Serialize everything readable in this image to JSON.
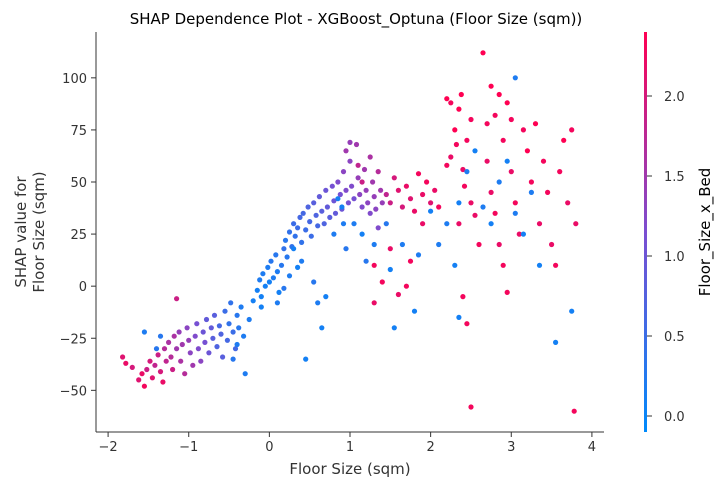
{
  "chart_data": {
    "type": "scatter",
    "title": "SHAP Dependence Plot - XGBoost_Optuna (Floor Size (sqm))",
    "xlabel": "Floor Size (sqm)",
    "ylabel_line1": "SHAP value for",
    "ylabel_line2": "Floor Size (sqm)",
    "xlim": [
      -2.15,
      4.15
    ],
    "ylim": [
      -70,
      122
    ],
    "xticks": [
      -2,
      -1,
      0,
      1,
      2,
      3,
      4
    ],
    "xtick_labels": [
      "−2",
      "−1",
      "0",
      "1",
      "2",
      "3",
      "4"
    ],
    "yticks": [
      -50,
      -25,
      0,
      25,
      50,
      75,
      100
    ],
    "ytick_labels": [
      "−50",
      "−25",
      "0",
      "25",
      "50",
      "75",
      "100"
    ],
    "grid": false,
    "colorbar": {
      "label": "Floor_Size_x_Bed",
      "range": [
        -0.1,
        2.4
      ],
      "ticks": [
        0.0,
        0.5,
        1.0,
        1.5,
        2.0
      ],
      "tick_labels": [
        "0.0",
        "0.5",
        "1.0",
        "1.5",
        "2.0"
      ],
      "color_low": "#008afb",
      "color_mid": "#7b4ed1",
      "color_high": "#ff0052"
    },
    "points": [
      [
        -1.82,
        -34,
        2.1
      ],
      [
        -1.78,
        -37,
        2.2
      ],
      [
        -1.7,
        -39,
        2.0
      ],
      [
        -1.62,
        -45,
        2.1
      ],
      [
        -1.58,
        -42,
        2.2
      ],
      [
        -1.55,
        -48,
        2.3
      ],
      [
        -1.52,
        -40,
        1.9
      ],
      [
        -1.48,
        -36,
        2.0
      ],
      [
        -1.45,
        -44,
        2.1
      ],
      [
        -1.42,
        -38,
        1.8
      ],
      [
        -1.38,
        -33,
        1.9
      ],
      [
        -1.35,
        -41,
        2.0
      ],
      [
        -1.32,
        -46,
        2.2
      ],
      [
        -1.3,
        -30,
        1.7
      ],
      [
        -1.28,
        -36,
        1.8
      ],
      [
        -1.25,
        -27,
        1.6
      ],
      [
        -1.22,
        -34,
        1.7
      ],
      [
        -1.2,
        -40,
        1.9
      ],
      [
        -1.18,
        -24,
        1.6
      ],
      [
        -1.15,
        -30,
        1.5
      ],
      [
        -1.12,
        -22,
        1.4
      ],
      [
        -1.1,
        -36,
        1.6
      ],
      [
        -1.08,
        -28,
        1.5
      ],
      [
        -1.05,
        -42,
        1.7
      ],
      [
        -1.02,
        -20,
        1.3
      ],
      [
        -1.0,
        -26,
        1.4
      ],
      [
        -0.98,
        -32,
        1.3
      ],
      [
        -0.95,
        -38,
        1.5
      ],
      [
        -0.92,
        -24,
        1.2
      ],
      [
        -0.9,
        -18,
        1.1
      ],
      [
        -0.88,
        -30,
        1.2
      ],
      [
        -0.85,
        -36,
        1.3
      ],
      [
        -0.82,
        -22,
        1.0
      ],
      [
        -0.8,
        -27,
        1.1
      ],
      [
        -0.78,
        -16,
        0.9
      ],
      [
        -0.75,
        -32,
        1.0
      ],
      [
        -0.72,
        -20,
        0.9
      ],
      [
        -0.7,
        -25,
        0.8
      ],
      [
        -0.68,
        -14,
        0.8
      ],
      [
        -0.65,
        -29,
        0.7
      ],
      [
        -0.62,
        -19,
        0.6
      ],
      [
        -0.6,
        -23,
        0.7
      ],
      [
        -0.58,
        -34,
        0.8
      ],
      [
        -0.55,
        -12,
        0.5
      ],
      [
        -0.52,
        -26,
        0.6
      ],
      [
        -0.5,
        -18,
        0.4
      ],
      [
        -0.48,
        -8,
        0.4
      ],
      [
        -0.45,
        -22,
        0.5
      ],
      [
        -0.42,
        -30,
        0.6
      ],
      [
        -0.4,
        -14,
        0.3
      ],
      [
        -0.38,
        -20,
        0.3
      ],
      [
        -0.35,
        -10,
        0.2
      ],
      [
        -0.32,
        -24,
        0.2
      ],
      [
        -0.3,
        -42,
        0.2
      ],
      [
        -1.55,
        -22,
        0.2
      ],
      [
        -1.4,
        -30,
        0.3
      ],
      [
        -1.15,
        -6,
        1.9
      ],
      [
        -1.35,
        -24,
        0.3
      ],
      [
        -0.2,
        -7,
        0.1
      ],
      [
        -0.15,
        -2,
        0.1
      ],
      [
        -0.12,
        3,
        0.2
      ],
      [
        -0.1,
        -5,
        0.1
      ],
      [
        -0.08,
        6,
        0.2
      ],
      [
        -0.05,
        0,
        0.1
      ],
      [
        -0.02,
        9,
        0.2
      ],
      [
        0.0,
        2,
        0.1
      ],
      [
        0.02,
        12,
        0.3
      ],
      [
        0.05,
        4,
        0.2
      ],
      [
        0.08,
        15,
        0.3
      ],
      [
        0.1,
        7,
        0.2
      ],
      [
        0.12,
        -3,
        0.1
      ],
      [
        0.15,
        10,
        0.3
      ],
      [
        0.18,
        18,
        0.4
      ],
      [
        0.2,
        22,
        0.3
      ],
      [
        0.22,
        14,
        0.3
      ],
      [
        0.25,
        26,
        0.4
      ],
      [
        0.28,
        19,
        0.4
      ],
      [
        0.3,
        30,
        0.5
      ],
      [
        0.32,
        24,
        0.4
      ],
      [
        0.35,
        28,
        0.5
      ],
      [
        0.38,
        33,
        0.6
      ],
      [
        0.4,
        21,
        0.4
      ],
      [
        0.42,
        35,
        0.6
      ],
      [
        0.45,
        27,
        0.5
      ],
      [
        0.48,
        38,
        0.7
      ],
      [
        0.5,
        31,
        0.6
      ],
      [
        0.52,
        24,
        0.5
      ],
      [
        0.55,
        40,
        0.8
      ],
      [
        0.58,
        34,
        0.7
      ],
      [
        0.6,
        29,
        0.6
      ],
      [
        0.62,
        43,
        0.9
      ],
      [
        0.65,
        36,
        0.8
      ],
      [
        0.68,
        30,
        0.7
      ],
      [
        0.7,
        46,
        1.0
      ],
      [
        0.72,
        38,
        0.9
      ],
      [
        0.75,
        33,
        0.8
      ],
      [
        0.78,
        48,
        1.1
      ],
      [
        0.8,
        41,
        1.0
      ],
      [
        0.82,
        35,
        0.9
      ],
      [
        0.85,
        50,
        1.2
      ],
      [
        0.88,
        44,
        1.1
      ],
      [
        0.9,
        37,
        1.0
      ],
      [
        0.92,
        55,
        1.3
      ],
      [
        0.95,
        46,
        1.2
      ],
      [
        0.98,
        40,
        1.1
      ],
      [
        1.0,
        60,
        1.3
      ],
      [
        1.02,
        48,
        1.2
      ],
      [
        1.05,
        42,
        1.1
      ],
      [
        1.08,
        68,
        1.5
      ],
      [
        1.1,
        52,
        1.4
      ],
      [
        1.12,
        44,
        1.3
      ],
      [
        1.15,
        38,
        1.2
      ],
      [
        1.18,
        56,
        1.5
      ],
      [
        1.2,
        46,
        1.4
      ],
      [
        1.22,
        40,
        1.3
      ],
      [
        1.25,
        35,
        1.2
      ],
      [
        1.28,
        50,
        1.5
      ],
      [
        1.3,
        43,
        1.4
      ],
      [
        1.32,
        37,
        1.3
      ],
      [
        1.35,
        28,
        1.2
      ],
      [
        1.38,
        46,
        1.5
      ],
      [
        1.4,
        40,
        1.4
      ],
      [
        0.3,
        18,
        0.1
      ],
      [
        0.4,
        12,
        0.2
      ],
      [
        0.55,
        2,
        0.3
      ],
      [
        0.7,
        -5,
        0.1
      ],
      [
        0.8,
        25,
        0.2
      ],
      [
        0.95,
        18,
        0.3
      ],
      [
        1.05,
        30,
        0.2
      ],
      [
        1.15,
        25,
        0.1
      ],
      [
        1.2,
        12,
        0.3
      ],
      [
        1.3,
        20,
        0.2
      ],
      [
        1.45,
        30,
        0.3
      ],
      [
        1.5,
        8,
        0.1
      ],
      [
        1.0,
        69,
        1.4
      ],
      [
        0.95,
        65,
        1.5
      ],
      [
        1.1,
        58,
        1.8
      ],
      [
        1.15,
        50,
        1.9
      ],
      [
        0.9,
        38,
        0.1
      ],
      [
        0.85,
        42,
        0.1
      ],
      [
        0.92,
        30,
        0.2
      ],
      [
        0.65,
        -20,
        0.1
      ],
      [
        0.45,
        -35,
        0.1
      ],
      [
        0.18,
        -1,
        0.3
      ],
      [
        0.6,
        -8,
        0.2
      ],
      [
        1.25,
        62,
        1.6
      ],
      [
        1.35,
        55,
        1.7
      ],
      [
        1.45,
        44,
        1.8
      ],
      [
        1.5,
        40,
        1.9
      ],
      [
        1.55,
        52,
        2.0
      ],
      [
        1.6,
        46,
        2.1
      ],
      [
        1.65,
        38,
        2.0
      ],
      [
        1.7,
        48,
        2.2
      ],
      [
        1.75,
        42,
        2.1
      ],
      [
        1.8,
        36,
        2.2
      ],
      [
        1.85,
        54,
        2.3
      ],
      [
        1.9,
        44,
        2.2
      ],
      [
        1.95,
        50,
        2.3
      ],
      [
        2.0,
        40,
        2.1
      ],
      [
        2.05,
        46,
        2.2
      ],
      [
        2.1,
        38,
        2.3
      ],
      [
        1.3,
        -8,
        2.2
      ],
      [
        1.4,
        2,
        2.3
      ],
      [
        1.3,
        10,
        2.3
      ],
      [
        1.6,
        -4,
        2.2
      ],
      [
        1.5,
        18,
        2.2
      ],
      [
        1.7,
        0,
        2.3
      ],
      [
        1.75,
        12,
        2.3
      ],
      [
        1.9,
        30,
        2.2
      ],
      [
        1.55,
        -20,
        0.1
      ],
      [
        1.8,
        -12,
        0.1
      ],
      [
        1.65,
        20,
        0.2
      ],
      [
        1.85,
        15,
        0.2
      ],
      [
        2.0,
        36,
        0.1
      ],
      [
        2.2,
        58,
        2.3
      ],
      [
        2.25,
        62,
        2.2
      ],
      [
        2.3,
        75,
        2.4
      ],
      [
        2.32,
        68,
        2.3
      ],
      [
        2.35,
        85,
        2.4
      ],
      [
        2.38,
        92,
        2.4
      ],
      [
        2.4,
        56,
        2.2
      ],
      [
        2.42,
        48,
        2.3
      ],
      [
        2.45,
        70,
        2.3
      ],
      [
        2.5,
        40,
        2.2
      ],
      [
        2.2,
        90,
        2.4
      ],
      [
        2.25,
        88,
        2.3
      ],
      [
        2.5,
        80,
        2.3
      ],
      [
        2.55,
        34,
        2.2
      ],
      [
        2.6,
        20,
        2.3
      ],
      [
        2.35,
        30,
        2.2
      ],
      [
        2.4,
        -5,
        2.3
      ],
      [
        2.45,
        -18,
        2.3
      ],
      [
        2.5,
        -58,
        2.3
      ],
      [
        2.65,
        112,
        2.4
      ],
      [
        2.7,
        78,
        2.3
      ],
      [
        2.75,
        96,
        2.4
      ],
      [
        2.8,
        82,
        2.3
      ],
      [
        2.85,
        92,
        2.4
      ],
      [
        2.9,
        70,
        2.3
      ],
      [
        2.95,
        88,
        2.4
      ],
      [
        3.0,
        80,
        2.3
      ],
      [
        2.7,
        60,
        2.2
      ],
      [
        2.75,
        45,
        2.2
      ],
      [
        2.8,
        35,
        2.3
      ],
      [
        2.85,
        20,
        2.2
      ],
      [
        2.9,
        10,
        2.3
      ],
      [
        2.95,
        -3,
        2.3
      ],
      [
        3.0,
        55,
        2.2
      ],
      [
        3.05,
        40,
        2.3
      ],
      [
        3.1,
        25,
        2.2
      ],
      [
        3.15,
        75,
        2.3
      ],
      [
        3.2,
        65,
        2.4
      ],
      [
        3.25,
        50,
        2.3
      ],
      [
        3.3,
        78,
        2.4
      ],
      [
        3.35,
        30,
        2.2
      ],
      [
        3.4,
        60,
        2.3
      ],
      [
        3.45,
        45,
        2.3
      ],
      [
        3.5,
        20,
        2.2
      ],
      [
        3.55,
        10,
        2.3
      ],
      [
        3.6,
        55,
        2.3
      ],
      [
        3.65,
        70,
        2.4
      ],
      [
        3.7,
        40,
        2.2
      ],
      [
        3.75,
        75,
        2.3
      ],
      [
        3.78,
        -60,
        2.3
      ],
      [
        3.8,
        30,
        2.2
      ],
      [
        3.05,
        100,
        0.2
      ],
      [
        2.35,
        40,
        0.1
      ],
      [
        2.45,
        55,
        0.2
      ],
      [
        2.55,
        65,
        0.1
      ],
      [
        2.65,
        38,
        0.2
      ],
      [
        2.75,
        30,
        0.1
      ],
      [
        2.85,
        50,
        0.2
      ],
      [
        2.95,
        60,
        0.1
      ],
      [
        3.05,
        35,
        0.2
      ],
      [
        3.15,
        25,
        0.1
      ],
      [
        3.25,
        45,
        0.2
      ],
      [
        3.35,
        10,
        0.1
      ],
      [
        3.55,
        -27,
        0.1
      ],
      [
        3.75,
        -12,
        0.1
      ],
      [
        2.35,
        -15,
        0.1
      ],
      [
        2.1,
        20,
        0.2
      ],
      [
        2.2,
        30,
        0.2
      ],
      [
        2.3,
        10,
        0.1
      ],
      [
        -0.4,
        -28,
        0.2
      ],
      [
        -0.45,
        -35,
        0.3
      ],
      [
        -0.25,
        -16,
        0.2
      ],
      [
        -0.1,
        -10,
        0.1
      ],
      [
        0.1,
        -8,
        0.2
      ],
      [
        0.25,
        5,
        0.2
      ],
      [
        0.35,
        9,
        0.1
      ]
    ]
  }
}
